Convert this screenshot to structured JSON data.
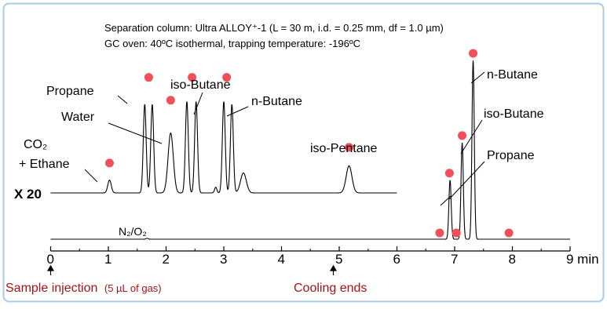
{
  "header": {
    "line1": "Separation column: Ultra ALLOY⁺-1 (L = 30 m, i.d. = 0.25 mm, df = 1.0 µm)",
    "line2": "GC oven: 40ºC isothermal, trapping temperature: -196ºC"
  },
  "colors": {
    "frame": "#a9cbe9",
    "peak_marker": "#f0505a",
    "annotation": "#a31515",
    "trace": "#000000"
  },
  "chart_data": {
    "type": "line",
    "x_unit": "min",
    "xlim": [
      0,
      9
    ],
    "x_ticks": [
      0,
      1,
      2,
      3,
      4,
      5,
      6,
      7,
      8,
      9
    ],
    "x_tick_labels": [
      "0",
      "1",
      "2",
      "3",
      "4",
      "5",
      "6",
      "7",
      "8",
      "9 min"
    ],
    "series": [
      {
        "name": "X 20",
        "scale_label": "X 20",
        "x_range": [
          0,
          6
        ],
        "baseline": 0,
        "peaks": [
          {
            "t": 1.02,
            "h": 0.09,
            "w": 0.03
          },
          {
            "t": 1.63,
            "h": 0.62,
            "w": 0.025
          },
          {
            "t": 1.76,
            "h": 0.62,
            "w": 0.025
          },
          {
            "t": 2.08,
            "h": 0.42,
            "w": 0.045
          },
          {
            "t": 2.36,
            "h": 0.64,
            "w": 0.025
          },
          {
            "t": 2.52,
            "h": 0.64,
            "w": 0.025
          },
          {
            "t": 2.86,
            "h": 0.04,
            "w": 0.02
          },
          {
            "t": 3.0,
            "h": 0.64,
            "w": 0.025
          },
          {
            "t": 3.14,
            "h": 0.62,
            "w": 0.025
          },
          {
            "t": 3.34,
            "h": 0.14,
            "w": 0.05
          },
          {
            "t": 5.17,
            "h": 0.19,
            "w": 0.05
          }
        ]
      },
      {
        "name": "",
        "x_range": [
          0,
          9
        ],
        "baseline": 0,
        "peaks": [
          {
            "t": 1.67,
            "h": 0.005,
            "w": 0.02
          },
          {
            "t": 6.92,
            "h": 0.33,
            "w": 0.02
          },
          {
            "t": 7.13,
            "h": 0.54,
            "w": 0.02
          },
          {
            "t": 7.32,
            "h": 1.0,
            "w": 0.02
          }
        ]
      }
    ],
    "peak_markers": [
      {
        "series": 0,
        "t": 1.02,
        "h": 0.16
      },
      {
        "series": 0,
        "t": 1.7,
        "h": 0.76
      },
      {
        "series": 0,
        "t": 2.08,
        "h": 0.6
      },
      {
        "series": 0,
        "t": 2.45,
        "h": 0.76
      },
      {
        "series": 0,
        "t": 3.05,
        "h": 0.76
      },
      {
        "series": 0,
        "t": 5.17,
        "h": 0.27
      },
      {
        "series": 1,
        "t": 6.74,
        "h": 0.0
      },
      {
        "series": 1,
        "t": 6.91,
        "h": 0.33
      },
      {
        "series": 1,
        "t": 7.03,
        "h": 0.0
      },
      {
        "series": 1,
        "t": 7.13,
        "h": 0.54
      },
      {
        "series": 1,
        "t": 7.32,
        "h": 1.0
      },
      {
        "series": 1,
        "t": 7.94,
        "h": 0.0
      }
    ],
    "peak_labels": [
      {
        "lines": [
          "Propane"
        ]
      },
      {
        "lines": [
          "Water"
        ]
      },
      {
        "lines": [
          "iso-Butane"
        ]
      },
      {
        "lines": [
          "n-Butane"
        ]
      },
      {
        "lines": [
          "CO₂",
          "+ Ethane"
        ]
      },
      {
        "lines": [
          "iso-Pentane"
        ]
      },
      {
        "lines": [
          "n-Butane"
        ]
      },
      {
        "lines": [
          "iso-Butane"
        ]
      },
      {
        "lines": [
          "Propane"
        ]
      },
      {
        "lines": [
          "N₂/O₂"
        ]
      }
    ]
  },
  "annotations": {
    "sample_injection": "Sample injection",
    "sample_detail": "(5 µL of gas)",
    "cooling_ends": "Cooling ends"
  }
}
